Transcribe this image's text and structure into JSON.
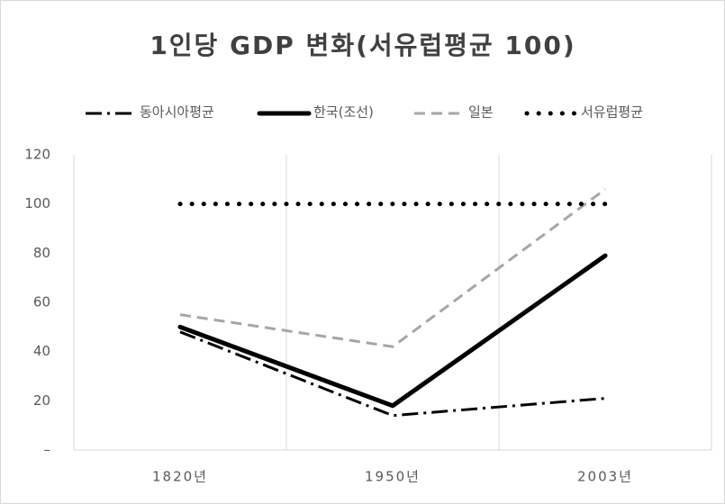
{
  "chart_data": {
    "type": "line",
    "title": "1인당 GDP 변화(서유럽평균 100)",
    "categories": [
      "1820년",
      "1950년",
      "2003년"
    ],
    "series": [
      {
        "name": "동아시아평균",
        "color": "#000000",
        "style": "dash-dot",
        "values": [
          48,
          14,
          21
        ]
      },
      {
        "name": "한국(조선)",
        "color": "#000000",
        "style": "solid",
        "values": [
          50,
          18,
          79
        ]
      },
      {
        "name": "일본",
        "color": "#a6a6a6",
        "style": "dashed",
        "values": [
          55,
          42,
          106
        ]
      },
      {
        "name": "서유럽평균",
        "color": "#000000",
        "style": "dotted",
        "values": [
          100,
          100,
          100
        ]
      }
    ],
    "ylim": [
      0,
      120
    ],
    "yticks": [
      {
        "value": 0,
        "label": "–"
      },
      20,
      40,
      60,
      80,
      100,
      120
    ],
    "legend": "top"
  }
}
